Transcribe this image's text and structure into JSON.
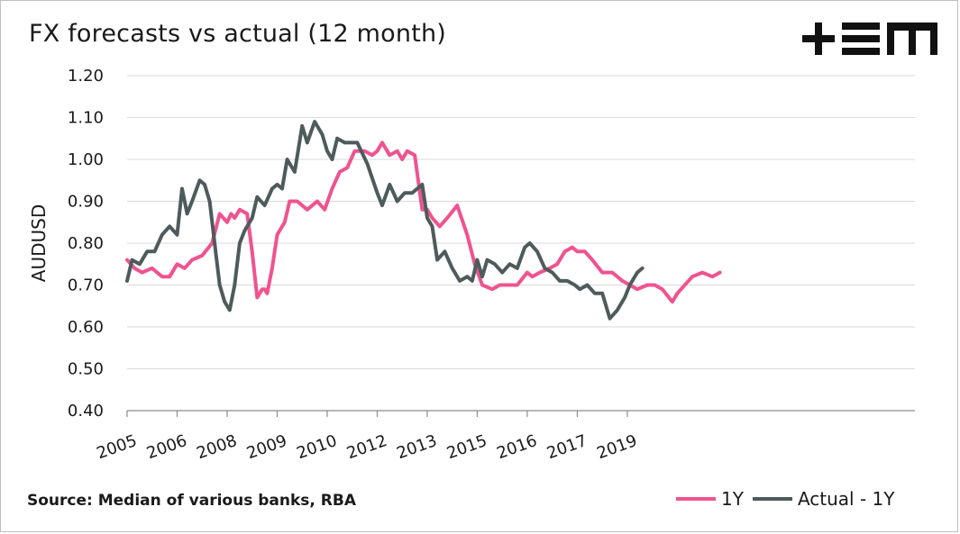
{
  "title": "FX forecasts vs actual (12 month)",
  "source": "Source: Median of various banks, RBA",
  "logo_text": "+EM",
  "chart_data": {
    "type": "line",
    "title": "FX forecasts vs actual (12 month)",
    "ylabel": "AUDUSD",
    "xlabel": "",
    "ylim": [
      0.4,
      1.2
    ],
    "yticks": [
      "0.40",
      "0.50",
      "0.60",
      "0.70",
      "0.80",
      "0.90",
      "1.00",
      "1.10",
      "1.20"
    ],
    "xlim": [
      2005.0,
      2020.75
    ],
    "xticks": [
      {
        "label": "2005",
        "x": 2005.0
      },
      {
        "label": "2006",
        "x": 2006.0
      },
      {
        "label": "2008",
        "x": 2007.0
      },
      {
        "label": "2009",
        "x": 2008.0
      },
      {
        "label": "2010",
        "x": 2009.0
      },
      {
        "label": "2012",
        "x": 2010.0
      },
      {
        "label": "2013",
        "x": 2011.0
      },
      {
        "label": "2015",
        "x": 2012.0
      },
      {
        "label": "2016",
        "x": 2013.0
      },
      {
        "label": "2017",
        "x": 2014.0
      },
      {
        "label": "2019",
        "x": 2015.0
      }
    ],
    "grid": true,
    "legend_position": "bottom-right",
    "series": [
      {
        "name": "1Y",
        "color": "#f0538f",
        "x": [
          2005.0,
          2005.15,
          2005.3,
          2005.5,
          2005.7,
          2005.85,
          2006.0,
          2006.15,
          2006.3,
          2006.5,
          2006.7,
          2006.85,
          2007.0,
          2007.08,
          2007.15,
          2007.25,
          2007.4,
          2007.5,
          2007.6,
          2007.7,
          2007.75,
          2007.8,
          2007.9,
          2008.0,
          2008.15,
          2008.25,
          2008.4,
          2008.6,
          2008.8,
          2008.95,
          2009.1,
          2009.25,
          2009.4,
          2009.55,
          2009.75,
          2009.9,
          2010.0,
          2010.1,
          2010.25,
          2010.4,
          2010.5,
          2010.6,
          2010.75,
          2010.9,
          2011.0,
          2011.1,
          2011.25,
          2011.4,
          2011.6,
          2011.8,
          2011.95,
          2012.1,
          2012.3,
          2012.45,
          2012.6,
          2012.8,
          2013.0,
          2013.1,
          2013.25,
          2013.45,
          2013.6,
          2013.75,
          2013.9,
          2014.0,
          2014.15,
          2014.3,
          2014.5,
          2014.7,
          2014.9,
          2015.05,
          2015.2,
          2015.4,
          2015.55,
          2015.7,
          2015.9,
          2016.0,
          2016.15,
          2016.3,
          2016.5,
          2016.7,
          2016.85
        ],
        "y": [
          0.76,
          0.74,
          0.73,
          0.74,
          0.72,
          0.72,
          0.75,
          0.74,
          0.76,
          0.77,
          0.8,
          0.87,
          0.85,
          0.87,
          0.86,
          0.88,
          0.87,
          0.78,
          0.67,
          0.69,
          0.69,
          0.68,
          0.74,
          0.82,
          0.85,
          0.9,
          0.9,
          0.88,
          0.9,
          0.88,
          0.93,
          0.97,
          0.98,
          1.02,
          1.02,
          1.01,
          1.02,
          1.04,
          1.01,
          1.02,
          1.0,
          1.02,
          1.01,
          0.88,
          0.88,
          0.86,
          0.84,
          0.86,
          0.89,
          0.82,
          0.75,
          0.7,
          0.69,
          0.7,
          0.7,
          0.7,
          0.73,
          0.72,
          0.73,
          0.74,
          0.75,
          0.78,
          0.79,
          0.78,
          0.78,
          0.76,
          0.73,
          0.73,
          0.71,
          0.7,
          0.69,
          0.7,
          0.7,
          0.69,
          0.66,
          0.68,
          0.7,
          0.72,
          0.73,
          0.72,
          0.73
        ]
      },
      {
        "name": "Actual - 1Y",
        "color": "#4e5b5d",
        "x": [
          2005.0,
          2005.1,
          2005.25,
          2005.4,
          2005.55,
          2005.7,
          2005.85,
          2006.0,
          2006.1,
          2006.2,
          2006.3,
          2006.45,
          2006.55,
          2006.65,
          2006.75,
          2006.85,
          2006.95,
          2007.05,
          2007.15,
          2007.25,
          2007.35,
          2007.5,
          2007.6,
          2007.75,
          2007.9,
          2008.0,
          2008.1,
          2008.2,
          2008.35,
          2008.5,
          2008.6,
          2008.75,
          2008.9,
          2009.0,
          2009.1,
          2009.2,
          2009.35,
          2009.45,
          2009.6,
          2009.8,
          2010.0,
          2010.1,
          2010.25,
          2010.4,
          2010.55,
          2010.7,
          2010.9,
          2011.0,
          2011.1,
          2011.2,
          2011.35,
          2011.5,
          2011.65,
          2011.8,
          2011.9,
          2012.0,
          2012.1,
          2012.2,
          2012.35,
          2012.5,
          2012.65,
          2012.8,
          2012.95,
          2013.05,
          2013.2,
          2013.35,
          2013.5,
          2013.65,
          2013.8,
          2013.95,
          2014.05,
          2014.2,
          2014.35,
          2014.5,
          2014.65,
          2014.8,
          2014.95,
          2015.05,
          2015.2,
          2015.3
        ],
        "y": [
          0.71,
          0.76,
          0.75,
          0.78,
          0.78,
          0.82,
          0.84,
          0.82,
          0.93,
          0.87,
          0.9,
          0.95,
          0.94,
          0.9,
          0.8,
          0.7,
          0.66,
          0.64,
          0.7,
          0.8,
          0.83,
          0.86,
          0.91,
          0.89,
          0.93,
          0.94,
          0.93,
          1.0,
          0.97,
          1.08,
          1.04,
          1.09,
          1.06,
          1.02,
          1.0,
          1.05,
          1.04,
          1.04,
          1.04,
          0.99,
          0.92,
          0.89,
          0.94,
          0.9,
          0.92,
          0.92,
          0.94,
          0.86,
          0.84,
          0.76,
          0.78,
          0.74,
          0.71,
          0.72,
          0.71,
          0.76,
          0.72,
          0.76,
          0.75,
          0.73,
          0.75,
          0.74,
          0.79,
          0.8,
          0.78,
          0.74,
          0.73,
          0.71,
          0.71,
          0.7,
          0.69,
          0.7,
          0.68,
          0.68,
          0.62,
          0.64,
          0.67,
          0.7,
          0.73,
          0.74
        ]
      }
    ]
  }
}
